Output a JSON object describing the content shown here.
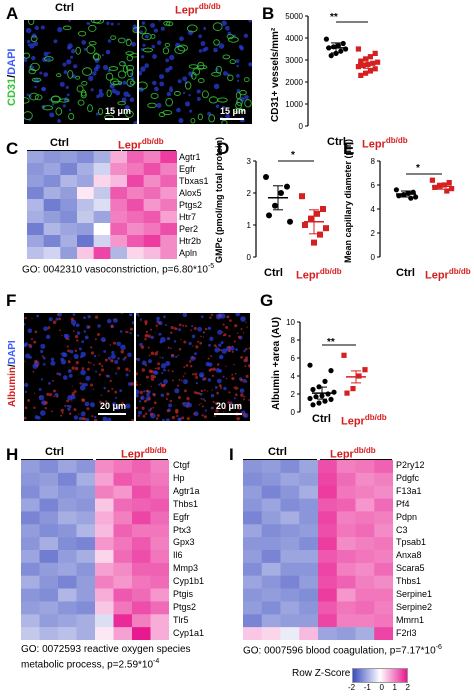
{
  "panels": {
    "A": {
      "letter": "A",
      "left_label": "Ctrl",
      "right_label": "Lepr",
      "right_sup": "db/db",
      "stain_main": "CD31",
      "stain_sep": "/",
      "stain_dapi": "DAPI",
      "scale_left": "15 μm",
      "scale_right": "15 μm"
    },
    "B": {
      "letter": "B",
      "ylabel": "CD31+ vessels/mm²",
      "sig": "**",
      "x_ctrl": "Ctrl",
      "x_lepr": "Lepr",
      "x_lepr_sup": "db/db",
      "ticks": [
        "5000",
        "4000",
        "3000",
        "2000",
        "1000",
        "0"
      ]
    },
    "C": {
      "letter": "C",
      "ctrl": "Ctrl",
      "lepr": "Lepr",
      "lepr_sup": "db/db",
      "genes": [
        "Agtr1",
        "Egfr",
        "Tbxas1",
        "Alox5",
        "Ptgs2",
        "Htr7",
        "Per2",
        "Htr2b",
        "Apln"
      ],
      "go_prefix": "GO: 0042310 vasoconstriction, p=6.80*10",
      "go_exp": "-5"
    },
    "D": {
      "letter": "D",
      "ylabel": "GMPc (pmol/mg total protein)",
      "sig": "*",
      "x_ctrl": "Ctrl",
      "x_lepr": "Lepr",
      "x_lepr_sup": "db/db",
      "ticks": [
        "3",
        "2",
        "1",
        "0"
      ]
    },
    "E": {
      "letter": "E",
      "ylabel": "Mean capillary diameter (μm)",
      "sig": "*",
      "x_ctrl": "Ctrl",
      "x_lepr": "Lepr",
      "x_lepr_sup": "db/db",
      "ticks": [
        "8",
        "6",
        "4",
        "2",
        "0"
      ]
    },
    "F": {
      "letter": "F",
      "stain_main": "Albumin",
      "stain_sep": "/",
      "stain_dapi": "DAPI",
      "scale_left": "20 μm",
      "scale_right": "20 μm"
    },
    "G": {
      "letter": "G",
      "ylabel": "Albumin +area (AU)",
      "sig": "**",
      "x_ctrl": "Ctrl",
      "x_lepr": "Lepr",
      "x_lepr_sup": "db/db",
      "ticks": [
        "10",
        "8",
        "6",
        "4",
        "2",
        "0"
      ]
    },
    "H": {
      "letter": "H",
      "ctrl": "Ctrl",
      "lepr": "Lepr",
      "lepr_sup": "db/db",
      "genes": [
        "Ctgf",
        "Hp",
        "Agtr1a",
        "Thbs1",
        "Egfr",
        "Ptx3",
        "Gpx3",
        "Il6",
        "Mmp3",
        "Cyp1b1",
        "Ptgis",
        "Ptgs2",
        "Tlr5",
        "Cyp1a1"
      ],
      "go_line1": "GO: 0072593 reactive oxygen species",
      "go_line2_prefix": "metabolic process, p=2.59*10",
      "go_exp": "-4"
    },
    "I": {
      "letter": "I",
      "ctrl": "Ctrl",
      "lepr": "Lepr",
      "lepr_sup": "db/db",
      "genes": [
        "P2ry12",
        "Pdgfc",
        "F13a1",
        "Pf4",
        "Pdpn",
        "C3",
        "Tpsab1",
        "Anxa8",
        "Scara5",
        "Thbs1",
        "Serpine1",
        "Serpine2",
        "Mmrn1",
        "F2rl3"
      ],
      "go_prefix": "GO: 0007596 blood coagulation, p=7.17*10",
      "go_exp": "-6"
    }
  },
  "legend": {
    "title": "Row Z-Score",
    "ticks": [
      "-2",
      "-1",
      "0",
      "1",
      "2"
    ]
  },
  "colors": {
    "heat_low": "#3b4cc0",
    "heat_mid": "#ffffff",
    "heat_high": "#e8188f",
    "ctrl_points": "#000000",
    "lepr_points": "#d42020",
    "cd31": "#35c43a",
    "dapi": "#2a3cd8",
    "albumin": "#c8282a"
  },
  "chart_data": [
    {
      "panel": "B",
      "type": "scatter",
      "categories": [
        "Ctrl",
        "Leprdb/db"
      ],
      "ylabel": "CD31+ vessels/mm²",
      "ylim": [
        0,
        5000
      ],
      "series": [
        {
          "values": [
            3950,
            3750,
            3650,
            3600,
            3550,
            3500,
            3400,
            3300,
            3200
          ]
        },
        {
          "values": [
            3500,
            3300,
            3150,
            3050,
            2950,
            2900,
            2850,
            2800,
            2750,
            2700,
            2600,
            2500,
            2400,
            2300
          ]
        }
      ],
      "means": [
        3550,
        2850
      ]
    },
    {
      "panel": "D",
      "type": "scatter",
      "categories": [
        "Ctrl",
        "Leprdb/db"
      ],
      "ylabel": "GMPc (pmol/mg total protein)",
      "ylim": [
        0,
        3
      ],
      "series": [
        {
          "values": [
            2.5,
            2.2,
            2.0,
            1.6,
            1.3,
            1.1
          ]
        },
        {
          "values": [
            1.9,
            1.5,
            1.35,
            1.2,
            1.0,
            0.9,
            0.7,
            0.45
          ]
        }
      ],
      "means": [
        1.85,
        1.1
      ]
    },
    {
      "panel": "E",
      "type": "scatter",
      "categories": [
        "Ctrl",
        "Leprdb/db"
      ],
      "ylabel": "Mean capillary diameter (μm)",
      "ylim": [
        0,
        8
      ],
      "series": [
        {
          "values": [
            5.6,
            5.4,
            5.3,
            5.2,
            5.1,
            5.0,
            4.9
          ]
        },
        {
          "values": [
            6.4,
            6.2,
            6.0,
            5.9,
            5.8,
            5.7,
            5.5
          ]
        }
      ],
      "means": [
        5.25,
        5.9
      ]
    },
    {
      "panel": "G",
      "type": "scatter",
      "categories": [
        "Ctrl",
        "Leprdb/db"
      ],
      "ylabel": "Albumin +area (AU)",
      "ylim": [
        0,
        10
      ],
      "series": [
        {
          "values": [
            5.2,
            4.6,
            3.4,
            2.8,
            2.5,
            2.2,
            2.0,
            1.8,
            1.7,
            1.5,
            1.4,
            1.2,
            1.0,
            0.8
          ]
        },
        {
          "values": [
            6.3,
            4.7,
            4.0,
            2.6,
            2.1
          ]
        }
      ],
      "means": [
        2.1,
        3.9
      ]
    },
    {
      "panel": "C",
      "type": "heatmap",
      "rows": [
        "Agtr1",
        "Egfr",
        "Tbxas1",
        "Alox5",
        "Ptgs2",
        "Htr7",
        "Per2",
        "Htr2b",
        "Apln"
      ],
      "columns": 9,
      "values": [
        [
          -0.8,
          -1.0,
          -0.9,
          -1.1,
          -0.7,
          0.5,
          1.2,
          0.9,
          1.6
        ],
        [
          -1.0,
          -0.8,
          -1.2,
          -0.7,
          -0.3,
          0.8,
          1.0,
          1.4,
          0.9
        ],
        [
          -0.9,
          -1.1,
          -0.6,
          -0.8,
          0.2,
          0.4,
          1.5,
          0.8,
          1.2
        ],
        [
          -1.2,
          -0.7,
          -0.9,
          0.1,
          -0.4,
          1.3,
          0.9,
          1.1,
          0.7
        ],
        [
          -0.6,
          -1.3,
          -1.0,
          -0.5,
          -0.2,
          1.0,
          1.4,
          0.7,
          1.0
        ],
        [
          -0.7,
          -0.9,
          -1.1,
          -0.4,
          -0.8,
          0.9,
          1.1,
          1.3,
          0.6
        ],
        [
          -1.3,
          -0.6,
          -0.8,
          -0.9,
          0.0,
          1.2,
          0.8,
          1.0,
          1.4
        ],
        [
          -0.8,
          -1.2,
          -0.7,
          -1.4,
          -0.3,
          0.7,
          1.3,
          1.6,
          0.8
        ],
        [
          -0.5,
          -0.3,
          -0.9,
          0.3,
          1.5,
          -0.6,
          0.2,
          0.4,
          0.8
        ]
      ]
    },
    {
      "panel": "H",
      "type": "heatmap",
      "rows": [
        "Ctgf",
        "Hp",
        "Agtr1a",
        "Thbs1",
        "Egfr",
        "Ptx3",
        "Gpx3",
        "Il6",
        "Mmp3",
        "Cyp1b1",
        "Ptgis",
        "Ptgs2",
        "Tlr5",
        "Cyp1a1"
      ],
      "columns": 8,
      "values": [
        [
          -0.9,
          -1.1,
          -0.8,
          -1.0,
          0.8,
          1.0,
          1.2,
          0.9
        ],
        [
          -1.0,
          -0.9,
          -1.2,
          -0.7,
          0.6,
          1.3,
          1.1,
          1.0
        ],
        [
          -1.1,
          -0.8,
          -1.0,
          -0.9,
          0.9,
          0.7,
          1.4,
          1.1
        ],
        [
          -0.8,
          -1.2,
          -0.9,
          -1.0,
          0.3,
          1.1,
          1.2,
          1.3
        ],
        [
          -1.2,
          -1.0,
          -0.7,
          -0.8,
          0.5,
          0.9,
          1.5,
          1.1
        ],
        [
          -0.9,
          -1.1,
          -1.0,
          -0.6,
          0.4,
          1.2,
          1.0,
          1.0
        ],
        [
          -1.0,
          -0.7,
          -1.1,
          -1.2,
          0.7,
          1.0,
          1.3,
          0.9
        ],
        [
          -0.8,
          -1.3,
          -0.9,
          -0.7,
          0.2,
          1.1,
          1.4,
          1.0
        ],
        [
          -1.1,
          -0.9,
          -0.8,
          -1.0,
          0.6,
          0.8,
          1.2,
          1.2
        ],
        [
          -0.7,
          -1.0,
          -1.2,
          -0.9,
          0.9,
          0.7,
          1.0,
          1.1
        ],
        [
          -1.0,
          -1.1,
          -0.6,
          -0.9,
          0.5,
          1.3,
          1.1,
          0.7
        ],
        [
          -0.9,
          -0.8,
          -1.0,
          -1.1,
          0.3,
          1.0,
          1.4,
          1.1
        ],
        [
          -0.6,
          -0.9,
          -0.8,
          -0.7,
          -0.2,
          1.8,
          0.9,
          0.5
        ],
        [
          -0.4,
          -0.6,
          -0.5,
          -0.7,
          0.1,
          0.6,
          2.0,
          0.5
        ]
      ]
    },
    {
      "panel": "I",
      "type": "heatmap",
      "rows": [
        "P2ry12",
        "Pdgfc",
        "F13a1",
        "Pf4",
        "Pdpn",
        "C3",
        "Tpsab1",
        "Anxa8",
        "Scara5",
        "Thbs1",
        "Serpine1",
        "Serpine2",
        "Mmrn1",
        "F2rl3"
      ],
      "columns": 8,
      "values": [
        [
          -1.0,
          -0.9,
          -1.1,
          -0.8,
          1.4,
          0.9,
          1.0,
          1.2
        ],
        [
          -1.1,
          -1.0,
          -0.8,
          -0.9,
          1.5,
          1.1,
          0.8,
          0.9
        ],
        [
          -0.9,
          -1.2,
          -1.0,
          -0.7,
          1.6,
          1.0,
          0.9,
          0.8
        ],
        [
          -1.0,
          -0.8,
          -1.1,
          -1.0,
          1.3,
          1.2,
          0.7,
          1.1
        ],
        [
          -1.2,
          -0.9,
          -0.7,
          -1.0,
          1.5,
          0.9,
          1.0,
          0.9
        ],
        [
          -0.8,
          -1.1,
          -1.0,
          -0.9,
          1.4,
          1.0,
          1.1,
          0.8
        ],
        [
          -1.0,
          -1.0,
          -0.9,
          -1.1,
          1.6,
          0.8,
          0.9,
          1.0
        ],
        [
          -0.9,
          -1.2,
          -0.8,
          -0.8,
          1.3,
          1.1,
          1.0,
          0.9
        ],
        [
          -1.1,
          -0.7,
          -1.0,
          -1.0,
          1.5,
          0.9,
          0.8,
          1.1
        ],
        [
          -0.8,
          -1.0,
          -1.2,
          -0.9,
          1.4,
          1.2,
          0.9,
          0.8
        ],
        [
          -1.0,
          -0.9,
          -1.0,
          -1.1,
          1.6,
          0.7,
          1.0,
          1.0
        ],
        [
          -0.9,
          -1.1,
          -0.8,
          -1.0,
          1.3,
          1.0,
          1.1,
          0.9
        ],
        [
          -1.2,
          -0.8,
          -0.9,
          -0.9,
          1.5,
          0.9,
          0.9,
          1.0
        ],
        [
          0.3,
          0.2,
          -0.1,
          0.4,
          -0.8,
          -0.9,
          -0.7,
          1.5
        ]
      ]
    }
  ]
}
